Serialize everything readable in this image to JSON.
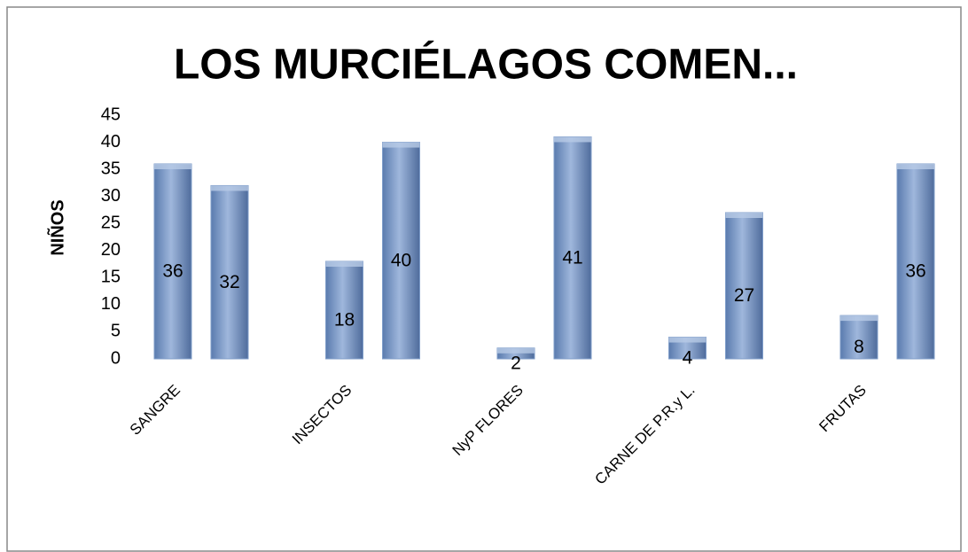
{
  "chart_data": {
    "type": "bar",
    "title": "LOS MURCIÉLAGOS COMEN...",
    "y_label": "NIÑOS",
    "categories": [
      "SANGRE",
      "INSECTOS",
      "NyP FLORES",
      "CARNE DE P.R.y L.",
      "FRUTAS"
    ],
    "series": [
      {
        "color": "#7f9dc9",
        "values": [
          36,
          18,
          2,
          4,
          8
        ]
      },
      {
        "color": "#7f9dc9",
        "values": [
          32,
          40,
          41,
          27,
          36
        ]
      }
    ],
    "ylim": [
      0,
      45
    ],
    "yticks": [
      0,
      5,
      10,
      15,
      20,
      25,
      30,
      35,
      40,
      45
    ]
  }
}
